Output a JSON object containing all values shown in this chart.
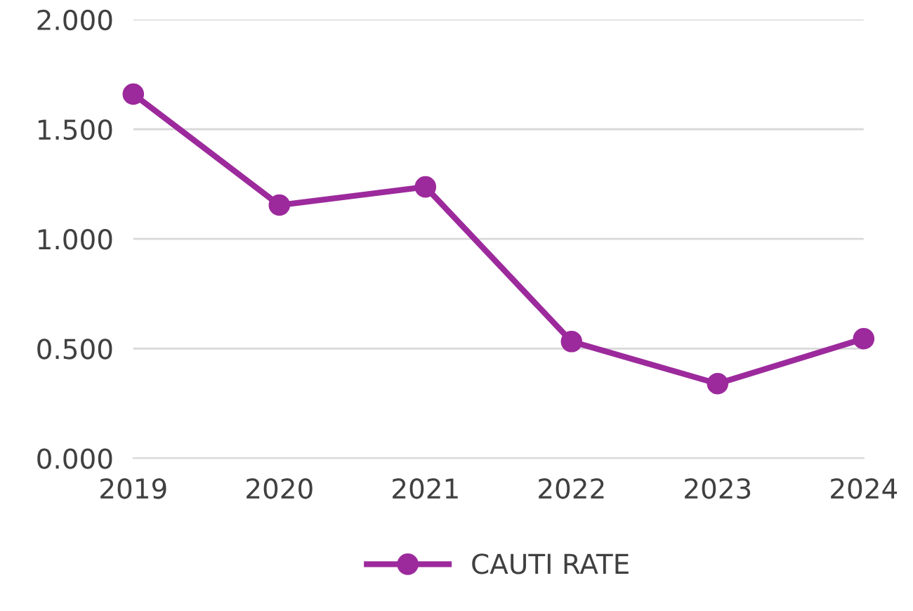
{
  "chart_data": {
    "type": "line",
    "categories": [
      "2019",
      "2020",
      "2021",
      "2022",
      "2023",
      "2024"
    ],
    "series": [
      {
        "name": "CAUTI RATE",
        "color": "#9c2a9c",
        "values": [
          1.66,
          1.154,
          1.237,
          0.532,
          0.34,
          0.545
        ]
      }
    ],
    "ylim": [
      0,
      2
    ],
    "yticks": [
      {
        "value": 0,
        "label": "0.000"
      },
      {
        "value": 0.5,
        "label": "0.500"
      },
      {
        "value": 1,
        "label": "1.000"
      },
      {
        "value": 1.5,
        "label": "1.500"
      },
      {
        "value": 2,
        "label": "2.000"
      }
    ],
    "grid": "y",
    "legend": "bottom",
    "marker": "circle",
    "line_style": "solid"
  }
}
